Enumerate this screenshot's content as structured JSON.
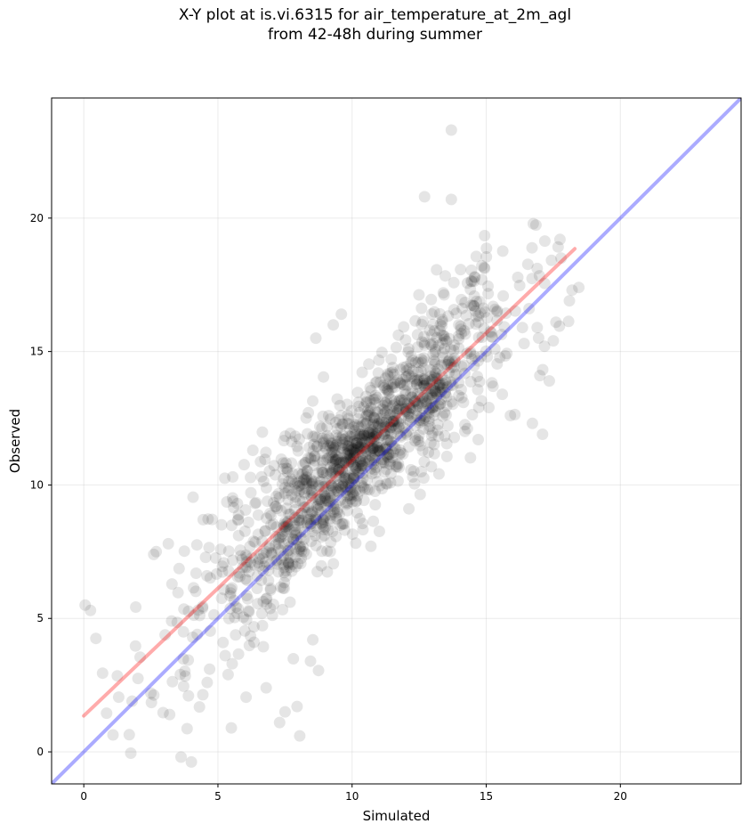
{
  "title_lines": [
    "X-Y plot at is.vi.6315 for air_temperature_at_2m_agl",
    "from 42-48h during summer"
  ],
  "chart_data": {
    "type": "scatter",
    "xlabel": "Simulated",
    "ylabel": "Observed",
    "xlim": [
      -1.2,
      24.5
    ],
    "ylim": [
      -1.2,
      24.5
    ],
    "xticks": [
      0,
      5,
      10,
      15,
      20
    ],
    "yticks": [
      0,
      5,
      10,
      15,
      20
    ],
    "grid": true,
    "colors": {
      "points": "#000000",
      "one_to_one_line": "#0000ff",
      "fit_line": "#ff0000"
    },
    "one_to_one_line": {
      "x": [
        -1.2,
        24.5
      ],
      "y": [
        -1.2,
        24.5
      ]
    },
    "fit_line": {
      "x": [
        0.0,
        18.3
      ],
      "y": [
        1.35,
        18.85
      ]
    },
    "outlier_points": [
      {
        "x": 0.05,
        "y": 5.5
      },
      {
        "x": 0.25,
        "y": 5.3
      },
      {
        "x": 0.45,
        "y": 4.25
      },
      {
        "x": 0.7,
        "y": 2.95
      },
      {
        "x": 0.85,
        "y": 1.45
      },
      {
        "x": 1.25,
        "y": 2.85
      },
      {
        "x": 1.3,
        "y": 2.05
      },
      {
        "x": 1.75,
        "y": -0.05
      },
      {
        "x": 1.8,
        "y": 1.9
      },
      {
        "x": 2.1,
        "y": 3.55
      },
      {
        "x": 2.5,
        "y": 2.2
      },
      {
        "x": 2.7,
        "y": 7.5
      },
      {
        "x": 3.15,
        "y": 7.8
      },
      {
        "x": 3.2,
        "y": 1.4
      },
      {
        "x": 3.6,
        "y": 2.9
      },
      {
        "x": 3.9,
        "y": 2.1
      },
      {
        "x": 4.45,
        "y": 8.7
      },
      {
        "x": 4.6,
        "y": 2.6
      },
      {
        "x": 5.5,
        "y": 0.9
      },
      {
        "x": 5.55,
        "y": 10.3
      },
      {
        "x": 6.05,
        "y": 2.05
      },
      {
        "x": 6.3,
        "y": 11.3
      },
      {
        "x": 6.8,
        "y": 2.4
      },
      {
        "x": 7.3,
        "y": 1.1
      },
      {
        "x": 7.5,
        "y": 1.5
      },
      {
        "x": 7.95,
        "y": 1.7
      },
      {
        "x": 8.05,
        "y": 0.6
      },
      {
        "x": 8.45,
        "y": 3.4
      },
      {
        "x": 8.65,
        "y": 15.5
      },
      {
        "x": 8.75,
        "y": 3.05
      },
      {
        "x": 9.3,
        "y": 16.0
      },
      {
        "x": 9.6,
        "y": 16.4
      },
      {
        "x": 10.7,
        "y": 7.7
      },
      {
        "x": 12.7,
        "y": 20.8
      },
      {
        "x": 13.7,
        "y": 23.3
      },
      {
        "x": 13.7,
        "y": 20.7
      },
      {
        "x": 14.7,
        "y": 11.7
      },
      {
        "x": 15.1,
        "y": 12.9
      },
      {
        "x": 15.6,
        "y": 13.4
      },
      {
        "x": 15.9,
        "y": 12.6
      },
      {
        "x": 16.9,
        "y": 15.9
      },
      {
        "x": 17.0,
        "y": 14.1
      },
      {
        "x": 17.1,
        "y": 11.9
      },
      {
        "x": 17.35,
        "y": 13.9
      },
      {
        "x": 17.5,
        "y": 15.4
      },
      {
        "x": 17.6,
        "y": 16.1
      },
      {
        "x": 17.75,
        "y": 19.2
      },
      {
        "x": 18.1,
        "y": 16.9
      },
      {
        "x": 18.2,
        "y": 17.3
      },
      {
        "x": 18.45,
        "y": 17.4
      }
    ],
    "point_cloud": {
      "n": 1400,
      "x_mean": 10.2,
      "x_sd": 2.9,
      "y_equals_fit_plus_noise_sd": 1.1
    }
  }
}
